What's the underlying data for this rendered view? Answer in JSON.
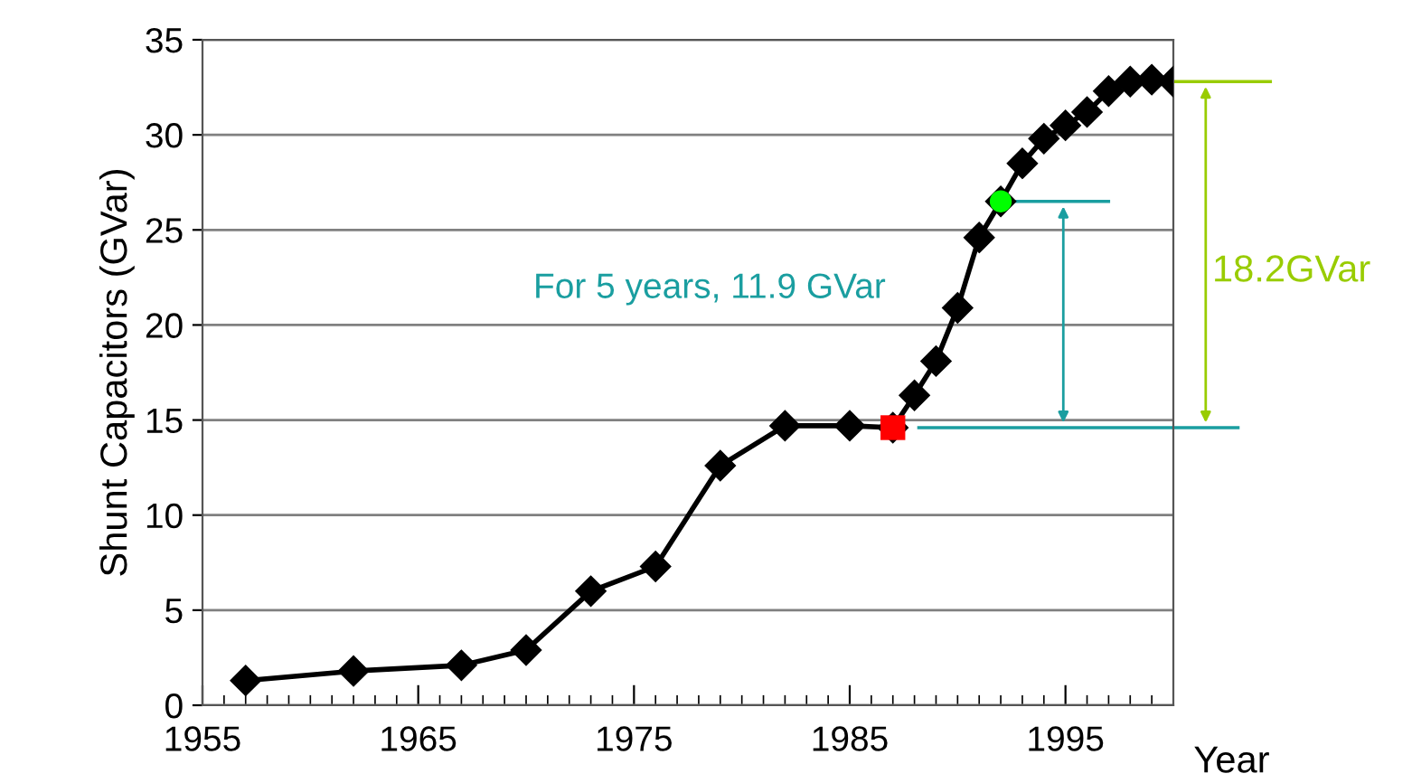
{
  "chart_data": {
    "type": "line",
    "ylabel": "Shunt Capacitors (GVar)",
    "xlabel": "Year",
    "x": [
      1957,
      1962,
      1967,
      1970,
      1973,
      1976,
      1979,
      1982,
      1985,
      1987,
      1988,
      1989,
      1990,
      1991,
      1992,
      1993,
      1994,
      1995,
      1996,
      1997,
      1998,
      1999,
      2000
    ],
    "series": [
      {
        "color": "#000000",
        "marker": "diamond",
        "values": [
          1.3,
          1.8,
          2.1,
          2.9,
          6.0,
          7.3,
          12.6,
          14.7,
          14.7,
          14.6,
          16.3,
          18.1,
          20.9,
          24.6,
          26.5,
          28.5,
          29.8,
          30.5,
          31.2,
          32.3,
          32.8,
          32.9,
          32.8
        ]
      },
      {
        "type": "scatter",
        "marker": "square",
        "color": "#ff0000",
        "x": [
          1987
        ],
        "values": [
          14.6
        ]
      },
      {
        "type": "scatter",
        "marker": "circle",
        "color": "#00ff00",
        "x": [
          1992
        ],
        "values": [
          26.5
        ]
      }
    ],
    "xlim": [
      1955,
      2000
    ],
    "xticks": [
      1955,
      {
        "value": 1956,
        "label": null
      },
      {
        "value": 1957,
        "label": null
      },
      {
        "value": 1958,
        "label": null
      },
      {
        "value": 1959,
        "label": null
      },
      {
        "value": 1960,
        "label": null
      },
      {
        "value": 1961,
        "label": null
      },
      {
        "value": 1962,
        "label": null
      },
      {
        "value": 1963,
        "label": null
      },
      {
        "value": 1964,
        "label": null
      },
      1965,
      {
        "value": 1966,
        "label": null
      },
      {
        "value": 1967,
        "label": null
      },
      {
        "value": 1968,
        "label": null
      },
      {
        "value": 1969,
        "label": null
      },
      {
        "value": 1970,
        "label": null
      },
      {
        "value": 1971,
        "label": null
      },
      {
        "value": 1972,
        "label": null
      },
      {
        "value": 1973,
        "label": null
      },
      {
        "value": 1974,
        "label": null
      },
      1975,
      {
        "value": 1976,
        "label": null
      },
      {
        "value": 1977,
        "label": null
      },
      {
        "value": 1978,
        "label": null
      },
      {
        "value": 1979,
        "label": null
      },
      {
        "value": 1980,
        "label": null
      },
      {
        "value": 1981,
        "label": null
      },
      {
        "value": 1982,
        "label": null
      },
      {
        "value": 1983,
        "label": null
      },
      {
        "value": 1984,
        "label": null
      },
      1985,
      {
        "value": 1986,
        "label": null
      },
      {
        "value": 1987,
        "label": null
      },
      {
        "value": 1988,
        "label": null
      },
      {
        "value": 1989,
        "label": null
      },
      {
        "value": 1990,
        "label": null
      },
      {
        "value": 1991,
        "label": null
      },
      {
        "value": 1992,
        "label": null
      },
      {
        "value": 1993,
        "label": null
      },
      {
        "value": 1994,
        "label": null
      },
      1995,
      {
        "value": 1996,
        "label": null
      },
      {
        "value": 1997,
        "label": null
      },
      {
        "value": 1998,
        "label": null
      },
      {
        "value": 1999,
        "label": null
      }
    ],
    "ylim": [
      0,
      35
    ],
    "yticks": [
      0,
      5,
      10,
      15,
      20,
      25,
      30,
      35
    ],
    "grid": "y",
    "legend": false,
    "line_style": "solid",
    "annotations": [
      "For 5 years, 11.9 GVar",
      "18.2GVar"
    ]
  }
}
